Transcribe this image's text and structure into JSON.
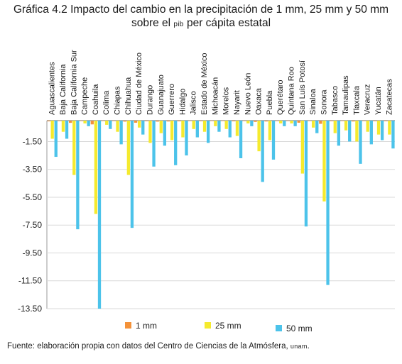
{
  "title": {
    "line1": "Gráfica 4.2 Impacto del cambio en la precipitación de 1 mm, 25 mm y 50 mm",
    "line2_pre": "sobre el ",
    "line2_sc": "pib",
    "line2_post": " per cápita estatal"
  },
  "source": {
    "text": "Fuente: elaboración propia con datos del Centro de Ciencias de la Atmósfera, ",
    "sc": "unam",
    "end": "."
  },
  "chart_data": {
    "type": "bar",
    "categories": [
      "Aguascalientes",
      "Baja California",
      "Baja California Sur",
      "Campeche",
      "Coahuila",
      "Colima",
      "Chiapas",
      "Chihuahua",
      "Ciudad de México",
      "Durango",
      "Guanajuato",
      "Guerrero",
      "Hidalgo",
      "Jalisco",
      "Estado de México",
      "Michoacán",
      "Morelos",
      "Nayarit",
      "Nuevo León",
      "Oaxaca",
      "Puebla",
      "Querétaro",
      "Quintana Roo",
      "San Luis Potosí",
      "Sinaloa",
      "Sonora",
      "Tabasco",
      "Tamaulipas",
      "Tlaxcala",
      "Veracruz",
      "Yucatán",
      "Zacatecas"
    ],
    "series": [
      {
        "name": "1 mm",
        "color": "#f4923a",
        "values": [
          -0.05,
          -0.03,
          -0.16,
          -0.01,
          -0.27,
          -0.01,
          -0.03,
          -0.07,
          -0.15,
          -0.04,
          -0.07,
          -0.06,
          -0.05,
          -0.03,
          -0.04,
          -0.02,
          -0.03,
          -0.05,
          -0.01,
          -0.09,
          -0.06,
          -0.01,
          -0.01,
          -0.15,
          -0.02,
          -0.23,
          -0.04,
          -0.03,
          -0.06,
          -0.03,
          -0.04,
          -0.04
        ]
      },
      {
        "name": "25 mm",
        "color": "#f5ea2e",
        "values": [
          -1.3,
          -0.8,
          -3.9,
          -0.2,
          -6.7,
          -0.3,
          -0.8,
          -3.9,
          -0.5,
          -1.6,
          -0.9,
          -1.4,
          -1.2,
          -0.6,
          -0.8,
          -0.4,
          -0.6,
          -1.1,
          -0.2,
          -2.2,
          -1.4,
          -0.2,
          -0.2,
          -3.8,
          -0.5,
          -5.8,
          -0.9,
          -0.7,
          -1.5,
          -0.8,
          -1.0,
          -1.0
        ]
      },
      {
        "name": "50 mm",
        "color": "#4cc3ea",
        "values": [
          -2.6,
          -1.3,
          -7.8,
          -0.4,
          -13.5,
          -0.6,
          -1.7,
          -7.7,
          -1.0,
          -3.3,
          -1.8,
          -3.2,
          -2.5,
          -1.2,
          -1.6,
          -0.8,
          -1.2,
          -2.7,
          -0.4,
          -4.4,
          -2.8,
          -0.4,
          -0.4,
          -7.6,
          -0.9,
          -11.8,
          -1.8,
          -1.5,
          -3.1,
          -1.7,
          -1.4,
          -2.0
        ]
      }
    ],
    "yticks": [
      "-1.50",
      "-3.50",
      "-5.50",
      "-7.50",
      "-9.50",
      "-11.50",
      "-13.50"
    ],
    "ytick_values": [
      -1.5,
      -3.5,
      -5.5,
      -7.5,
      -9.5,
      -11.5,
      -13.5
    ],
    "ylim": [
      -13.5,
      0.5
    ],
    "legend_position": "bottom"
  }
}
